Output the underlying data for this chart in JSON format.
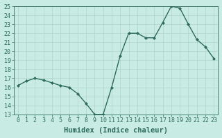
{
  "x": [
    0,
    1,
    2,
    3,
    4,
    5,
    6,
    7,
    8,
    9,
    10,
    11,
    12,
    13,
    14,
    15,
    16,
    17,
    18,
    19,
    20,
    21,
    22,
    23
  ],
  "y": [
    16.2,
    16.7,
    17.0,
    16.8,
    16.5,
    16.2,
    16.0,
    15.3,
    14.2,
    13.0,
    13.0,
    16.0,
    19.5,
    22.0,
    22.0,
    21.5,
    21.5,
    23.2,
    25.0,
    24.8,
    23.0,
    21.3,
    20.5,
    19.2
  ],
  "xlabel": "Humidex (Indice chaleur)",
  "ylabel": "",
  "ylim": [
    13,
    25
  ],
  "xlim": [
    -0.5,
    23.5
  ],
  "yticks": [
    13,
    14,
    15,
    16,
    17,
    18,
    19,
    20,
    21,
    22,
    23,
    24,
    25
  ],
  "xticks": [
    0,
    1,
    2,
    3,
    4,
    5,
    6,
    7,
    8,
    9,
    10,
    11,
    12,
    13,
    14,
    15,
    16,
    17,
    18,
    19,
    20,
    21,
    22,
    23
  ],
  "line_color": "#2e6b5e",
  "marker": "D",
  "marker_size": 2.0,
  "bg_color": "#c8ece4",
  "grid_color": "#b0d4cc",
  "font_color": "#2e6b5e",
  "xlabel_fontsize": 7.5,
  "tick_fontsize": 6.0,
  "lw": 1.0
}
